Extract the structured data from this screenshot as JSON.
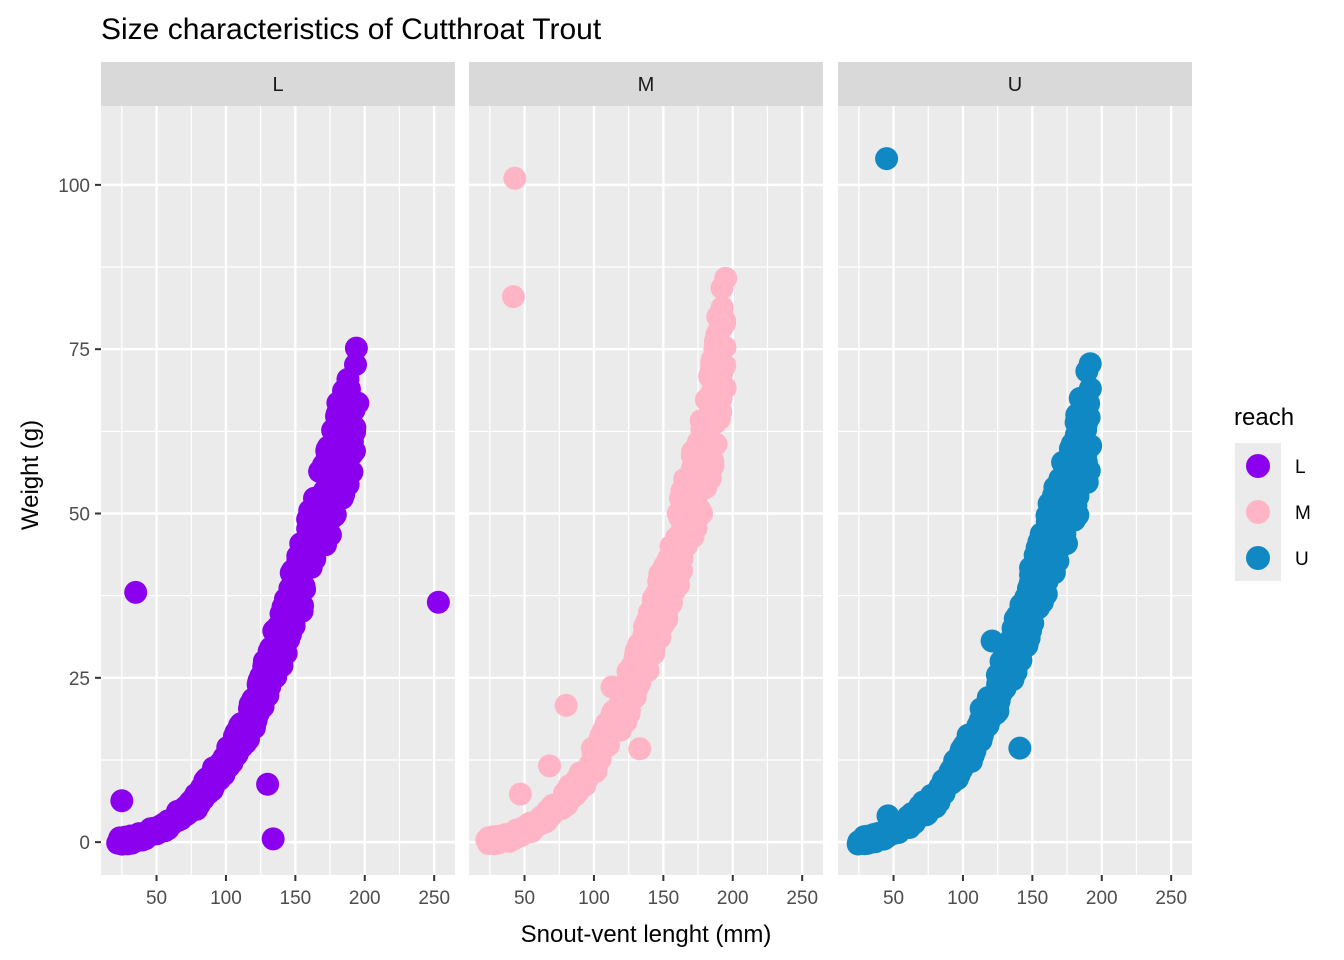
{
  "chart_data": {
    "type": "scatter",
    "title": "Size characteristics of Cutthroat Trout",
    "xlabel": "Snout-vent lenght (mm)",
    "ylabel": "Weight (g)",
    "xlim": [
      10,
      265
    ],
    "ylim": [
      -5,
      112
    ],
    "x_ticks": [
      50,
      100,
      150,
      200,
      250
    ],
    "x_tick_labels": [
      "50",
      "100",
      "150",
      "200",
      "250"
    ],
    "y_ticks": [
      0,
      25,
      50,
      75,
      100
    ],
    "y_tick_labels": [
      "0",
      "25",
      "50",
      "75",
      "100"
    ],
    "grid": true,
    "legend": {
      "title": "reach",
      "placement": "right",
      "entries": [
        {
          "label": "L",
          "color": "#8B00EE"
        },
        {
          "label": "M",
          "color": "#FFB5C5"
        },
        {
          "label": "U",
          "color": "#1088C4"
        }
      ]
    },
    "panels": [
      {
        "label": "L",
        "color": "#8B00EE",
        "trend": [
          [
            22,
            0
          ],
          [
            40,
            0.8
          ],
          [
            60,
            2.8
          ],
          [
            80,
            6.5
          ],
          [
            100,
            12.5
          ],
          [
            120,
            20
          ],
          [
            140,
            31
          ],
          [
            160,
            44
          ],
          [
            180,
            58
          ],
          [
            195,
            67
          ]
        ],
        "outliers": [
          [
            35,
            38
          ],
          [
            25,
            6.3
          ],
          [
            253,
            36.5
          ],
          [
            130,
            8.8
          ],
          [
            134,
            0.5
          ],
          [
            195,
            66.8
          ],
          [
            180,
            64.5
          ]
        ]
      },
      {
        "label": "M",
        "color": "#FFB5C5",
        "trend": [
          [
            22,
            0
          ],
          [
            40,
            0.8
          ],
          [
            60,
            2.8
          ],
          [
            80,
            6.5
          ],
          [
            100,
            12.5
          ],
          [
            120,
            20
          ],
          [
            140,
            31
          ],
          [
            160,
            44
          ],
          [
            180,
            60
          ],
          [
            195,
            78
          ]
        ],
        "outliers": [
          [
            43,
            101
          ],
          [
            42,
            83
          ],
          [
            80,
            20.8
          ],
          [
            47,
            7.3
          ],
          [
            68,
            11.6
          ],
          [
            113,
            23.6
          ],
          [
            133,
            14.2
          ],
          [
            190,
            77.8
          ],
          [
            193,
            72
          ]
        ]
      },
      {
        "label": "U",
        "color": "#1088C4",
        "trend": [
          [
            22,
            0
          ],
          [
            40,
            0.8
          ],
          [
            60,
            2.8
          ],
          [
            80,
            6.5
          ],
          [
            100,
            12.5
          ],
          [
            120,
            20
          ],
          [
            140,
            31
          ],
          [
            160,
            44
          ],
          [
            180,
            56
          ],
          [
            192,
            65
          ]
        ],
        "outliers": [
          [
            45,
            104
          ],
          [
            46,
            4
          ],
          [
            121,
            30.6
          ],
          [
            141,
            14.3
          ],
          [
            182,
            65
          ],
          [
            192,
            60.3
          ]
        ]
      }
    ]
  }
}
